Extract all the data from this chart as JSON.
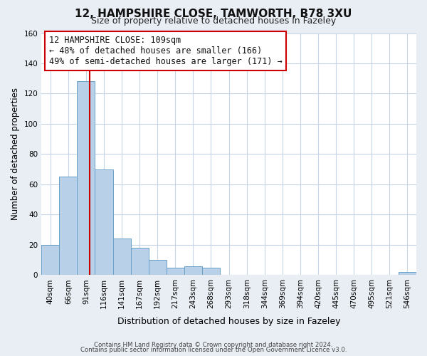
{
  "title_line1": "12, HAMPSHIRE CLOSE, TAMWORTH, B78 3XU",
  "title_line2": "Size of property relative to detached houses in Fazeley",
  "xlabel": "Distribution of detached houses by size in Fazeley",
  "ylabel": "Number of detached properties",
  "bin_labels": [
    "40sqm",
    "66sqm",
    "91sqm",
    "116sqm",
    "141sqm",
    "167sqm",
    "192sqm",
    "217sqm",
    "243sqm",
    "268sqm",
    "293sqm",
    "318sqm",
    "344sqm",
    "369sqm",
    "394sqm",
    "420sqm",
    "445sqm",
    "470sqm",
    "495sqm",
    "521sqm",
    "546sqm"
  ],
  "bar_values": [
    20,
    65,
    128,
    70,
    24,
    18,
    10,
    5,
    6,
    5,
    0,
    0,
    0,
    0,
    0,
    0,
    0,
    0,
    0,
    0,
    2
  ],
  "bar_color": "#b8d0e8",
  "bar_edge_color": "#6aa0c8",
  "ylim": [
    0,
    160
  ],
  "yticks": [
    0,
    20,
    40,
    60,
    80,
    100,
    120,
    140,
    160
  ],
  "vline_color": "#cc0000",
  "annotation_title": "12 HAMPSHIRE CLOSE: 109sqm",
  "annotation_line1": "← 48% of detached houses are smaller (166)",
  "annotation_line2": "49% of semi-detached houses are larger (171) →",
  "footer_line1": "Contains HM Land Registry data © Crown copyright and database right 2024.",
  "footer_line2": "Contains public sector information licensed under the Open Government Licence v3.0.",
  "background_color": "#e8eef4",
  "plot_bg_color": "#ffffff"
}
